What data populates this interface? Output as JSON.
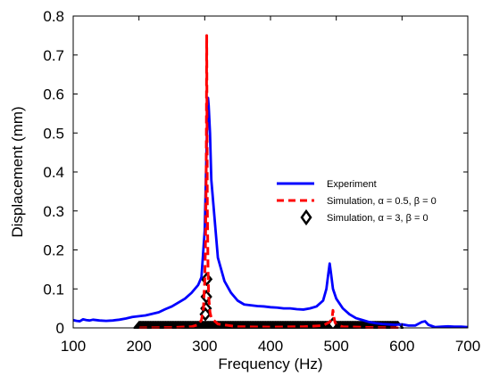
{
  "chart_data": {
    "type": "line",
    "title": "",
    "xlabel": "Frequency (Hz)",
    "ylabel": "Displacement (mm)",
    "xlim": [
      100,
      700
    ],
    "ylim": [
      0,
      0.8
    ],
    "xticks": [
      100,
      200,
      300,
      400,
      500,
      600,
      700
    ],
    "yticks": [
      0,
      0.1,
      0.2,
      0.3,
      0.4,
      0.5,
      0.6,
      0.7,
      0.8
    ],
    "grid": false,
    "legend_position": "top-right",
    "colors": {
      "experiment": "#0000ff",
      "sim1": "#ff0000",
      "sim2": "#000000"
    },
    "series": [
      {
        "name": "Experiment",
        "style": "solid-line",
        "x": [
          100,
          105,
          110,
          115,
          120,
          125,
          130,
          140,
          150,
          160,
          170,
          180,
          190,
          200,
          210,
          220,
          230,
          240,
          250,
          260,
          270,
          280,
          290,
          295,
          300,
          302,
          304,
          305,
          306,
          308,
          310,
          315,
          320,
          330,
          340,
          350,
          360,
          370,
          380,
          390,
          400,
          410,
          420,
          430,
          440,
          450,
          460,
          470,
          480,
          485,
          488,
          490,
          492,
          495,
          500,
          510,
          520,
          530,
          540,
          550,
          560,
          570,
          580,
          590,
          600,
          610,
          620,
          630,
          635,
          640,
          650,
          660,
          670,
          680,
          690,
          700
        ],
        "y": [
          0.02,
          0.018,
          0.017,
          0.022,
          0.02,
          0.019,
          0.021,
          0.019,
          0.018,
          0.019,
          0.021,
          0.024,
          0.028,
          0.03,
          0.032,
          0.036,
          0.04,
          0.048,
          0.055,
          0.065,
          0.075,
          0.09,
          0.11,
          0.13,
          0.25,
          0.4,
          0.55,
          0.59,
          0.57,
          0.5,
          0.38,
          0.28,
          0.18,
          0.12,
          0.09,
          0.07,
          0.06,
          0.058,
          0.056,
          0.055,
          0.053,
          0.052,
          0.05,
          0.05,
          0.048,
          0.047,
          0.05,
          0.055,
          0.07,
          0.1,
          0.14,
          0.165,
          0.14,
          0.1,
          0.075,
          0.05,
          0.035,
          0.025,
          0.02,
          0.015,
          0.012,
          0.01,
          0.009,
          0.008,
          0.009,
          0.006,
          0.006,
          0.015,
          0.017,
          0.008,
          0.002,
          0.003,
          0.004,
          0.003,
          0.003,
          0.002
        ]
      },
      {
        "name": "Simulation, α = 0.5, β = 0",
        "style": "dashed-line",
        "x": [
          200,
          250,
          280,
          290,
          295,
          298,
          300,
          301,
          302,
          302.5,
          303,
          303.5,
          304,
          305,
          306,
          308,
          310,
          320,
          350,
          400,
          450,
          480,
          490,
          492,
          494,
          495,
          496,
          498,
          500,
          510,
          550,
          600
        ],
        "y": [
          0,
          0.001,
          0.003,
          0.008,
          0.02,
          0.05,
          0.12,
          0.2,
          0.35,
          0.5,
          0.75,
          0.5,
          0.3,
          0.15,
          0.08,
          0.04,
          0.025,
          0.01,
          0.003,
          0.002,
          0.003,
          0.006,
          0.015,
          0.02,
          0.03,
          0.045,
          0.03,
          0.015,
          0.008,
          0.003,
          0.001,
          0
        ]
      },
      {
        "name": "Simulation, α = 3, β = 0",
        "style": "diamond-markers",
        "x_start": 200,
        "x_end": 594,
        "x_step": 1,
        "peaks": [
          {
            "x": 303,
            "y": 0.125
          },
          {
            "x": 302.5,
            "y": 0.08
          },
          {
            "x": 302,
            "y": 0.05
          },
          {
            "x": 301,
            "y": 0.035
          },
          {
            "x": 495,
            "y": 0.01
          }
        ],
        "baseline_y": 0
      }
    ]
  }
}
